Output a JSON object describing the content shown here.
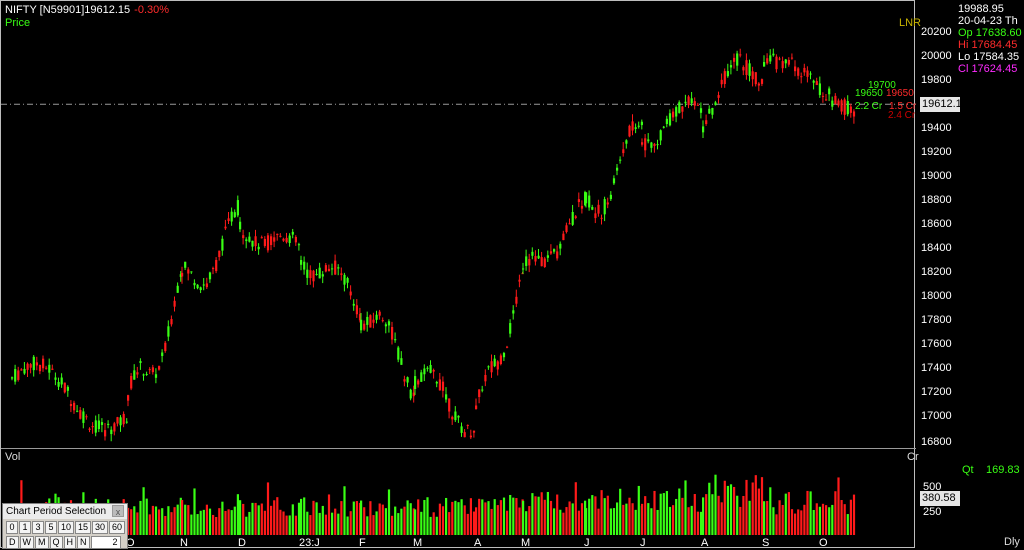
{
  "header": {
    "symbol": "NIFTY [N59901]",
    "last": "19612.15",
    "change_pct": "-0.30%",
    "price_label": "Price",
    "lnr_label": "LNR",
    "vol_label": "Vol",
    "cr_label": "Cr"
  },
  "info_panel": {
    "value": "19988.95",
    "date": "20-04-23 Th",
    "open": "Op 17638.60",
    "high": "Hi 17684.45",
    "low": "Lo 17584.35",
    "close": "Cl 17624.45"
  },
  "price_axis": {
    "ticks": [
      "20200",
      "20000",
      "19800",
      "19400",
      "19200",
      "19000",
      "18800",
      "18600",
      "18400",
      "18200",
      "18000",
      "17800",
      "17600",
      "17400",
      "17200",
      "17000",
      "16800"
    ],
    "last_price_box": "19612.1"
  },
  "right_labels": {
    "top_partial": "19700",
    "green_level": "19650",
    "red_level": "19650",
    "vol_green": "2.2 Cr",
    "vol_red": "1.5 Cr",
    "bottom_partial": "2.4 Cr"
  },
  "volume_axis": {
    "tick_500": "500",
    "tick_250": "250",
    "last_vol_box": "380.58"
  },
  "qt": {
    "label": "Qt",
    "value": "169.83"
  },
  "interval_label": "Dly",
  "x_labels": [
    "O",
    "N",
    "D",
    "23:J",
    "F",
    "M",
    "A",
    "M",
    "J",
    "J",
    "A",
    "S",
    "O"
  ],
  "period_panel": {
    "title": "Chart Period Selection",
    "close": "x",
    "minute_buttons": [
      "0",
      "1",
      "3",
      "5",
      "10",
      "15",
      "30",
      "60"
    ],
    "period_buttons": [
      "D",
      "W",
      "M",
      "Q",
      "H",
      "N"
    ],
    "input_value": "2"
  },
  "colors": {
    "up": "#39ff14",
    "down": "#ff1a1a",
    "background": "#000000",
    "mag": "#ff2bff"
  },
  "chart_data": {
    "type": "candlestick",
    "symbol": "NIFTY",
    "yaxis": {
      "label": "Price",
      "min": 16800,
      "max": 20200
    },
    "x_months": [
      "O",
      "N",
      "D",
      "23:J",
      "F",
      "M",
      "A",
      "M",
      "J",
      "J",
      "A",
      "S",
      "O"
    ],
    "monthly_closes": [
      17050,
      18100,
      18600,
      18400,
      17950,
      17350,
      17000,
      18200,
      18750,
      19350,
      19600,
      20000,
      19612
    ],
    "monthly_highs": [
      17900,
      18300,
      18880,
      18250,
      18100,
      17800,
      17700,
      18450,
      18900,
      19950,
      19800,
      20220,
      19800
    ],
    "monthly_lows": [
      16850,
      17100,
      17900,
      17800,
      17400,
      16900,
      16900,
      17700,
      18350,
      18900,
      19250,
      19300,
      19450
    ],
    "last_price": 19612.15,
    "change_pct": -0.3,
    "volume_axis": {
      "label": "Vol",
      "unit": "Cr",
      "ticks": [
        250,
        500
      ]
    },
    "last_volume": 380.58
  }
}
